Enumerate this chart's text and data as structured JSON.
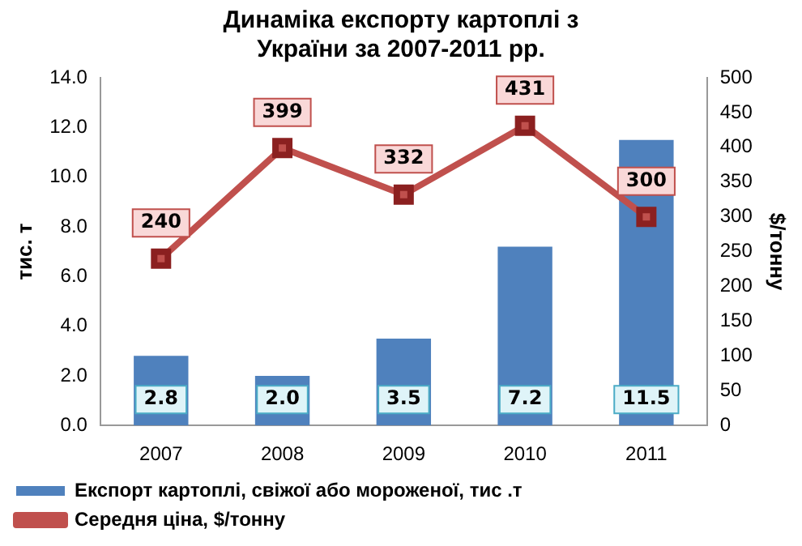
{
  "chart_data": {
    "type": "bar",
    "title": "Динаміка експорту картоплі з України за 2007-2011 рр.",
    "categories": [
      "2007",
      "2008",
      "2009",
      "2010",
      "2011"
    ],
    "series": [
      {
        "name": "Експорт картоплі, свіжої або мороженої, тис .т",
        "color": "#4f81bd",
        "values": [
          2.8,
          2.0,
          3.5,
          7.2,
          11.5
        ],
        "value_labels": [
          "2.8",
          "2.0",
          "3.5",
          "7.2",
          "11.5"
        ]
      },
      {
        "name": "Середня ціна, $/тонну",
        "type": "line",
        "axis": "y2",
        "color": "#c0504d",
        "values": [
          240,
          399,
          332,
          431,
          300
        ],
        "value_labels": [
          "240",
          "399",
          "332",
          "431",
          "300"
        ],
        "marker": "square"
      }
    ],
    "ylabel": "тис. т",
    "y2label": "$/тонну",
    "ylim": [
      0,
      14
    ],
    "yticks": [
      {
        "value": 0,
        "label": "0.0"
      },
      {
        "value": 2,
        "label": "2.0"
      },
      {
        "value": 4,
        "label": "4.0"
      },
      {
        "value": 6,
        "label": "6.0"
      },
      {
        "value": 8,
        "label": "8.0"
      },
      {
        "value": 10,
        "label": "10.0"
      },
      {
        "value": 12,
        "label": "12.0"
      },
      {
        "value": 14,
        "label": "14.0"
      }
    ],
    "y2lim": [
      0,
      500
    ],
    "y2ticks": [
      0,
      50,
      100,
      150,
      200,
      250,
      300,
      350,
      400,
      450,
      500
    ],
    "legend": "bottom"
  }
}
